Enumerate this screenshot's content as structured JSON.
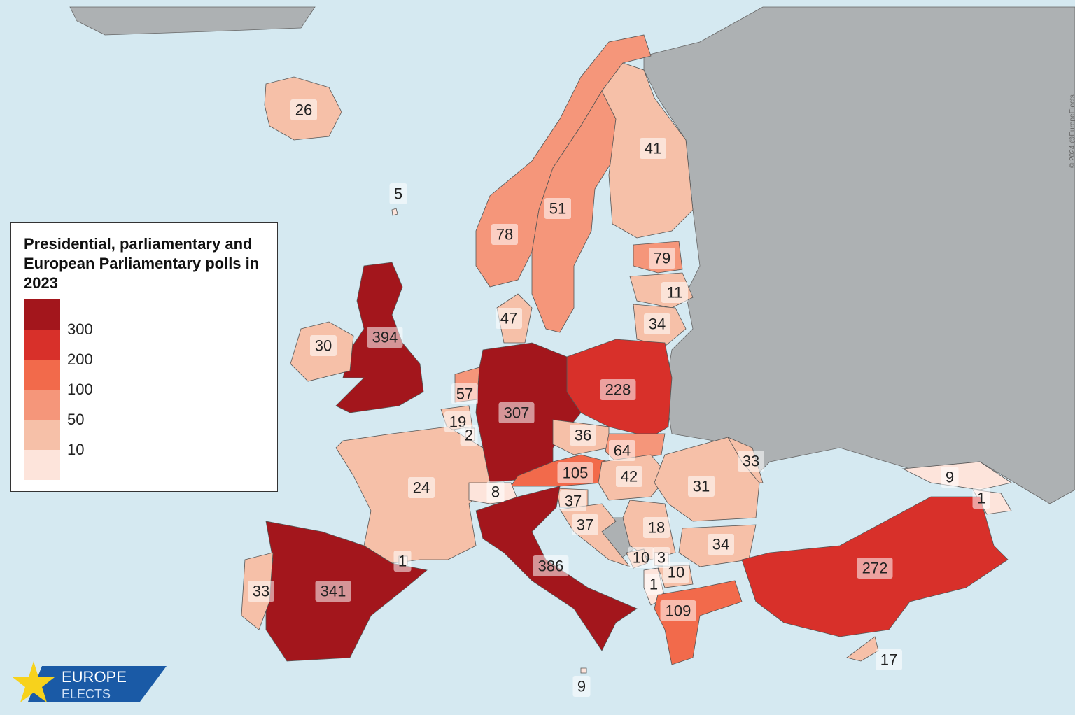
{
  "legend": {
    "title": "Presidential, parliamentary and European Parliamentary polls in 2023",
    "thresholds": [
      300,
      200,
      100,
      50,
      10
    ],
    "colors": [
      "#a3161c",
      "#d8302a",
      "#f26a4b",
      "#f5967a",
      "#f6c0a8",
      "#fde4db"
    ]
  },
  "regions": [
    26,
    5,
    78,
    51,
    41,
    79,
    11,
    34,
    47,
    394,
    30,
    228,
    57,
    307,
    19,
    2,
    36,
    64,
    105,
    42,
    33,
    31,
    9,
    1,
    24,
    8,
    37,
    37,
    18,
    34,
    10,
    3,
    10,
    1,
    386,
    1,
    341,
    33,
    109,
    272,
    17,
    9
  ],
  "logo": {
    "line1": "EUROPE",
    "line2": "ELECTS"
  },
  "copyright": "© 2024 @EuropeElects"
}
